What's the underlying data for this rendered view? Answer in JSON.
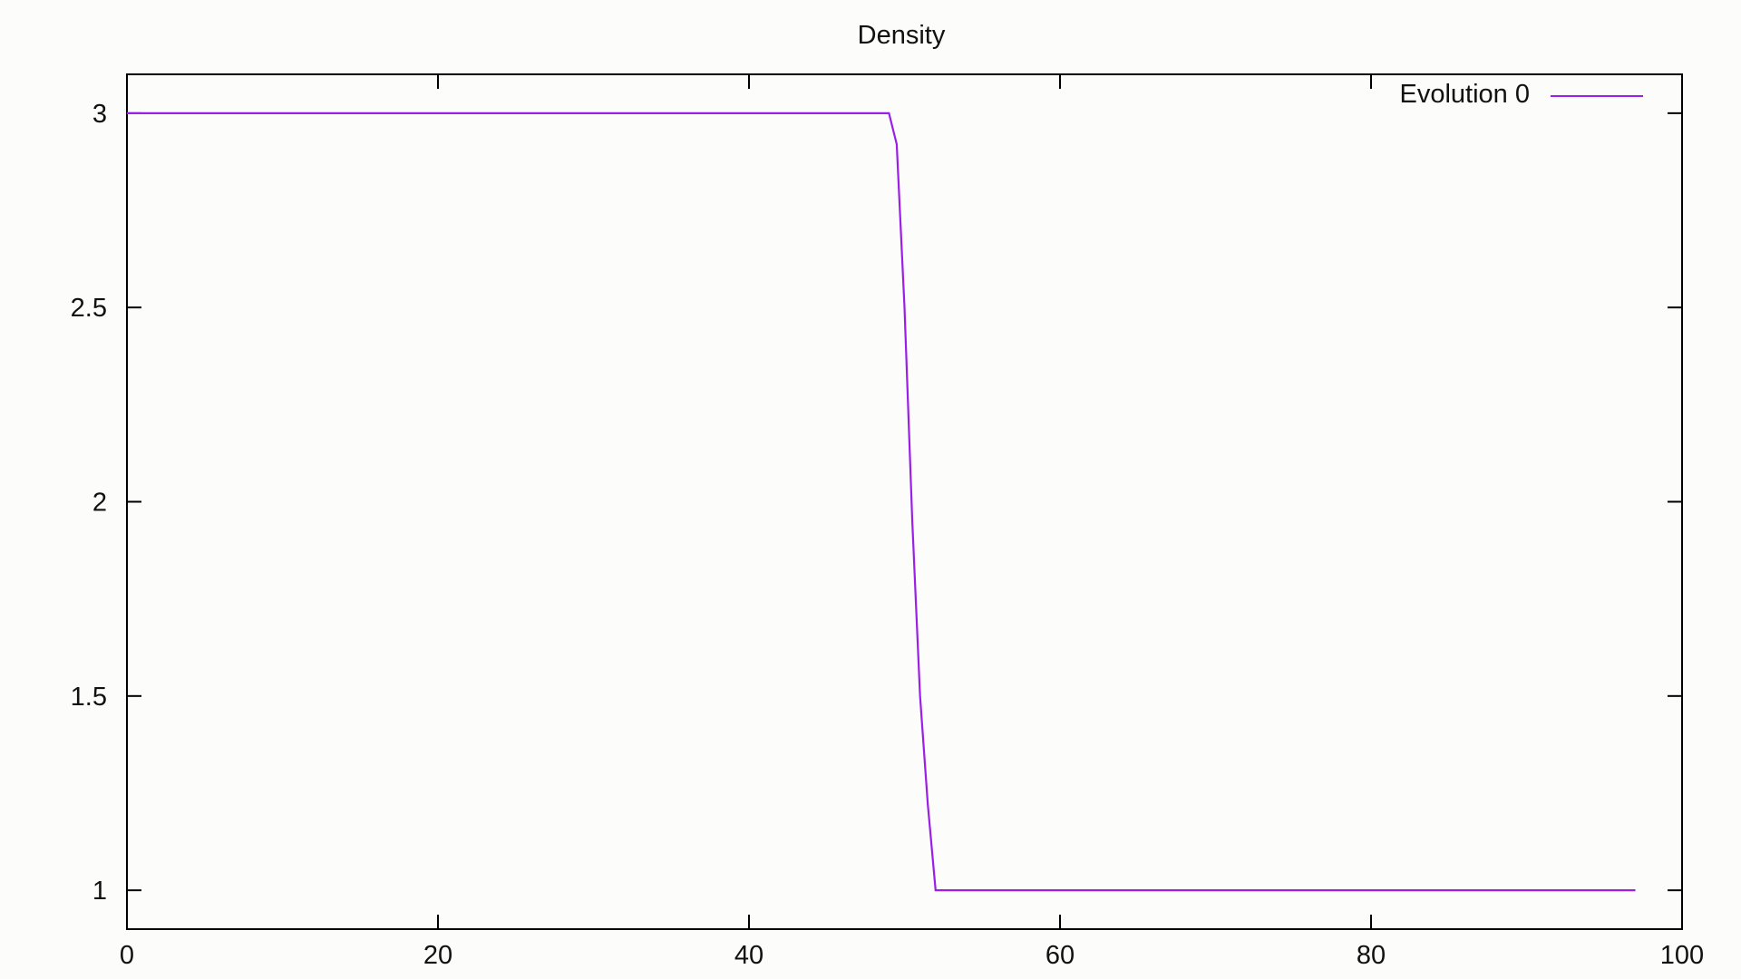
{
  "chart_data": {
    "type": "line",
    "title": "Density",
    "xlabel": "",
    "ylabel": "",
    "xlim": [
      0,
      100
    ],
    "ylim": [
      0.9,
      3.1
    ],
    "xticks": [
      0,
      20,
      40,
      60,
      80,
      100
    ],
    "xtick_labels": [
      "0",
      "20",
      "40",
      "60",
      "80",
      "100"
    ],
    "yticks": [
      1,
      1.5,
      2,
      2.5,
      3
    ],
    "ytick_labels": [
      "1",
      "1.5",
      "2",
      "2.5",
      "3"
    ],
    "grid": false,
    "legend_position": "top-right",
    "series": [
      {
        "name": "Evolution 0",
        "color": "#9b1fe6",
        "x": [
          0,
          49,
          49.5,
          50,
          50.5,
          51,
          51.5,
          52,
          97
        ],
        "y": [
          3,
          3,
          2.92,
          2.5,
          1.95,
          1.5,
          1.22,
          1,
          1
        ]
      }
    ]
  }
}
